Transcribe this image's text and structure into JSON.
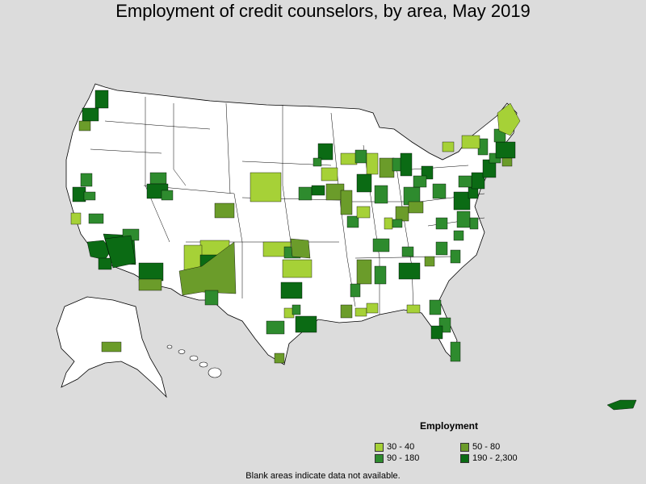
{
  "title": "Employment of credit counselors, by area, May 2019",
  "footnote": "Blank areas indicate data not available.",
  "legend": {
    "title": "Employment",
    "items": [
      {
        "label": "30 - 40",
        "color": "#a6d137"
      },
      {
        "label": "50 - 80",
        "color": "#6b9c2a"
      },
      {
        "label": "90 - 180",
        "color": "#2e8b2e"
      },
      {
        "label": "190 - 2,300",
        "color": "#0b6b14"
      }
    ]
  },
  "colors": {
    "background": "#dcdcdc",
    "land": "#ffffff",
    "border": "#000000",
    "tier1": "#a6d137",
    "tier2": "#6b9c2a",
    "tier3": "#2e8b2e",
    "tier4": "#0b6b14"
  },
  "map_regions": [
    {
      "name": "seattle",
      "tier": 4
    },
    {
      "name": "portland",
      "tier": 4
    },
    {
      "name": "salem",
      "tier": 2
    },
    {
      "name": "sacramento",
      "tier": 3
    },
    {
      "name": "san-francisco-bay",
      "tier": 4
    },
    {
      "name": "fresno",
      "tier": 3
    },
    {
      "name": "salinas",
      "tier": 1
    },
    {
      "name": "los-angeles",
      "tier": 4
    },
    {
      "name": "riverside",
      "tier": 4
    },
    {
      "name": "san-diego",
      "tier": 4
    },
    {
      "name": "las-vegas",
      "tier": 3
    },
    {
      "name": "phoenix",
      "tier": 4
    },
    {
      "name": "tucson",
      "tier": 4
    },
    {
      "name": "sierra-vista",
      "tier": 2
    },
    {
      "name": "salt-lake-city",
      "tier": 4
    },
    {
      "name": "ogden",
      "tier": 3
    },
    {
      "name": "boise",
      "tier": 3
    },
    {
      "name": "denver",
      "tier": 2
    },
    {
      "name": "colorado-springs",
      "tier": 1
    },
    {
      "name": "albuquerque",
      "tier": 2
    },
    {
      "name": "santa-fe",
      "tier": 4
    },
    {
      "name": "las-cruces",
      "tier": 3
    },
    {
      "name": "el-paso",
      "tier": 3
    },
    {
      "name": "northwest-nm",
      "tier": 1
    },
    {
      "name": "dallas",
      "tier": 4
    },
    {
      "name": "houston",
      "tier": 4
    },
    {
      "name": "austin",
      "tier": 3
    },
    {
      "name": "san-antonio",
      "tier": 3
    },
    {
      "name": "corpus-christi",
      "tier": 2
    },
    {
      "name": "oklahoma-city",
      "tier": 1
    },
    {
      "name": "tulsa",
      "tier": 2
    },
    {
      "name": "wichita",
      "tier": 1
    },
    {
      "name": "kansas-city",
      "tier": 3
    },
    {
      "name": "omaha",
      "tier": 3
    },
    {
      "name": "nebraska-central",
      "tier": 1
    },
    {
      "name": "minneapolis",
      "tier": 4
    },
    {
      "name": "des-moines",
      "tier": 1
    },
    {
      "name": "chicago",
      "tier": 4
    },
    {
      "name": "milwaukee",
      "tier": 3
    },
    {
      "name": "st-louis",
      "tier": 2
    },
    {
      "name": "indianapolis",
      "tier": 3
    },
    {
      "name": "detroit",
      "tier": 4
    },
    {
      "name": "grand-rapids",
      "tier": 2
    },
    {
      "name": "columbus",
      "tier": 3
    },
    {
      "name": "cleveland",
      "tier": 4
    },
    {
      "name": "cincinnati",
      "tier": 2
    },
    {
      "name": "pittsburgh",
      "tier": 3
    },
    {
      "name": "louisville",
      "tier": 1
    },
    {
      "name": "nashville",
      "tier": 3
    },
    {
      "name": "memphis",
      "tier": 2
    },
    {
      "name": "atlanta",
      "tier": 4
    },
    {
      "name": "birmingham",
      "tier": 3
    },
    {
      "name": "jackson",
      "tier": 3
    },
    {
      "name": "new-orleans",
      "tier": 2
    },
    {
      "name": "charlotte",
      "tier": 3
    },
    {
      "name": "raleigh",
      "tier": 3
    },
    {
      "name": "virginia-beach",
      "tier": 3
    },
    {
      "name": "washington-dc",
      "tier": 4
    },
    {
      "name": "baltimore",
      "tier": 4
    },
    {
      "name": "philadelphia",
      "tier": 4
    },
    {
      "name": "new-york",
      "tier": 4
    },
    {
      "name": "boston",
      "tier": 4
    },
    {
      "name": "hartford",
      "tier": 3
    },
    {
      "name": "albany",
      "tier": 3
    },
    {
      "name": "syracuse",
      "tier": 1
    },
    {
      "name": "buffalo",
      "tier": 1
    },
    {
      "name": "maine",
      "tier": 1
    },
    {
      "name": "new-hampshire",
      "tier": 3
    },
    {
      "name": "jacksonville",
      "tier": 3
    },
    {
      "name": "orlando",
      "tier": 3
    },
    {
      "name": "tampa",
      "tier": 4
    },
    {
      "name": "miami",
      "tier": 3
    },
    {
      "name": "tallahassee",
      "tier": 1
    },
    {
      "name": "anchorage",
      "tier": 2
    },
    {
      "name": "puerto-rico",
      "tier": 4
    }
  ]
}
